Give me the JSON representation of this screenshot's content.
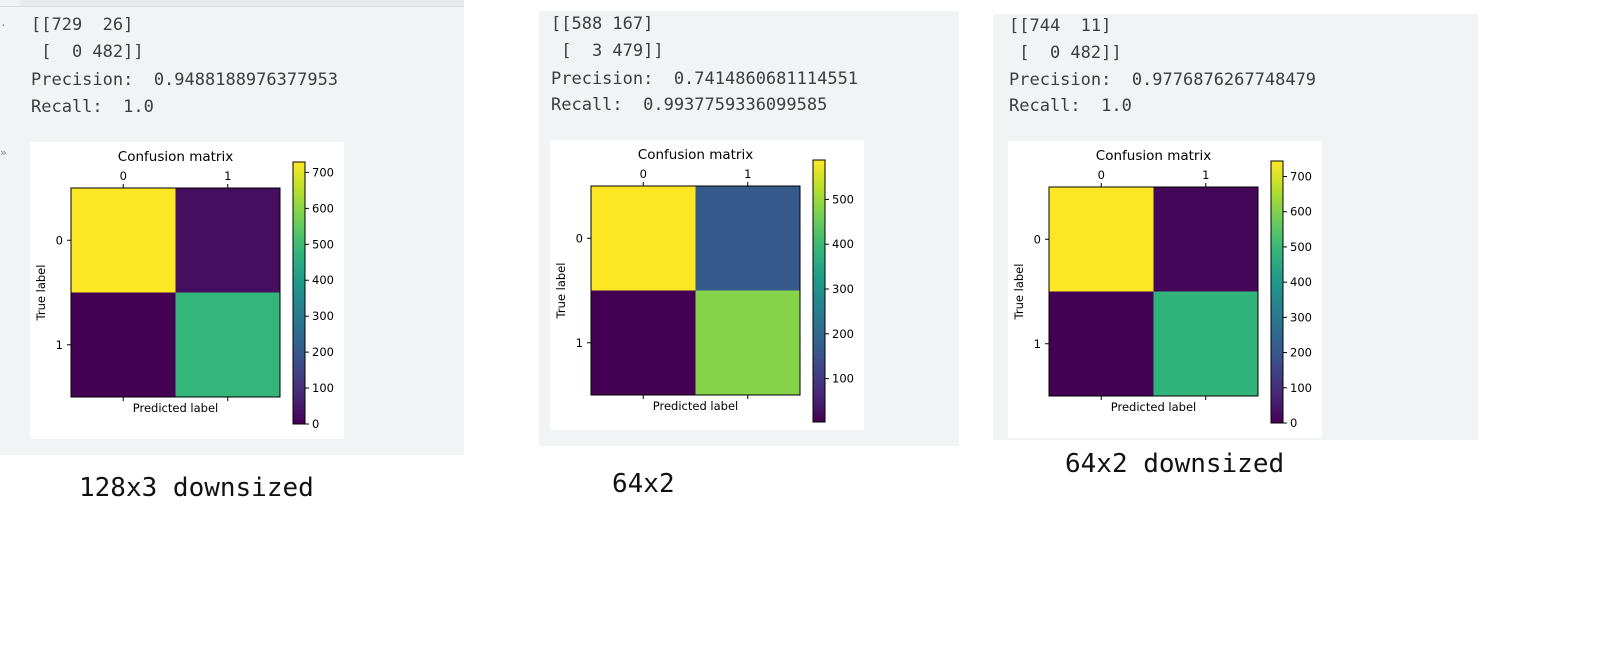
{
  "gutter_marks": [
    "·",
    "»"
  ],
  "figures": [
    {
      "matrix_text": "[[729  26]\n [  0 482]]",
      "precision_label": "Precision:  0.9488188976377953",
      "recall_label": "Recall:  1.0",
      "caption": "128x3 downsized"
    },
    {
      "matrix_text": "[[588 167]\n [  3 479]]",
      "precision_label": "Precision:  0.7414860681114551",
      "recall_label": "Recall:  0.9937759336099585",
      "caption": "64x2"
    },
    {
      "matrix_text": "[[744  11]\n [  0 482]]",
      "precision_label": "Precision:  0.9776876267748479",
      "recall_label": "Recall:  1.0",
      "caption": "64x2 downsized"
    }
  ],
  "chart_data": [
    {
      "type": "heatmap",
      "title": "Confusion matrix",
      "xlabel": "Predicted label",
      "ylabel": "True label",
      "x_ticks": [
        "0",
        "1"
      ],
      "y_ticks": [
        "0",
        "1"
      ],
      "matrix": [
        [
          729,
          26
        ],
        [
          0,
          482
        ]
      ],
      "colormap": "viridis",
      "colorbar_range": [
        0,
        729
      ],
      "colorbar_ticks": [
        0,
        100,
        200,
        300,
        400,
        500,
        600,
        700
      ]
    },
    {
      "type": "heatmap",
      "title": "Confusion matrix",
      "xlabel": "Predicted label",
      "ylabel": "True label",
      "x_ticks": [
        "0",
        "1"
      ],
      "y_ticks": [
        "0",
        "1"
      ],
      "matrix": [
        [
          588,
          167
        ],
        [
          3,
          479
        ]
      ],
      "colormap": "viridis",
      "colorbar_range": [
        3,
        588
      ],
      "colorbar_ticks": [
        100,
        200,
        300,
        400,
        500
      ]
    },
    {
      "type": "heatmap",
      "title": "Confusion matrix",
      "xlabel": "Predicted label",
      "ylabel": "True label",
      "x_ticks": [
        "0",
        "1"
      ],
      "y_ticks": [
        "0",
        "1"
      ],
      "matrix": [
        [
          744,
          11
        ],
        [
          0,
          482
        ]
      ],
      "colormap": "viridis",
      "colorbar_range": [
        0,
        744
      ],
      "colorbar_ticks": [
        0,
        100,
        200,
        300,
        400,
        500,
        600,
        700
      ]
    }
  ]
}
